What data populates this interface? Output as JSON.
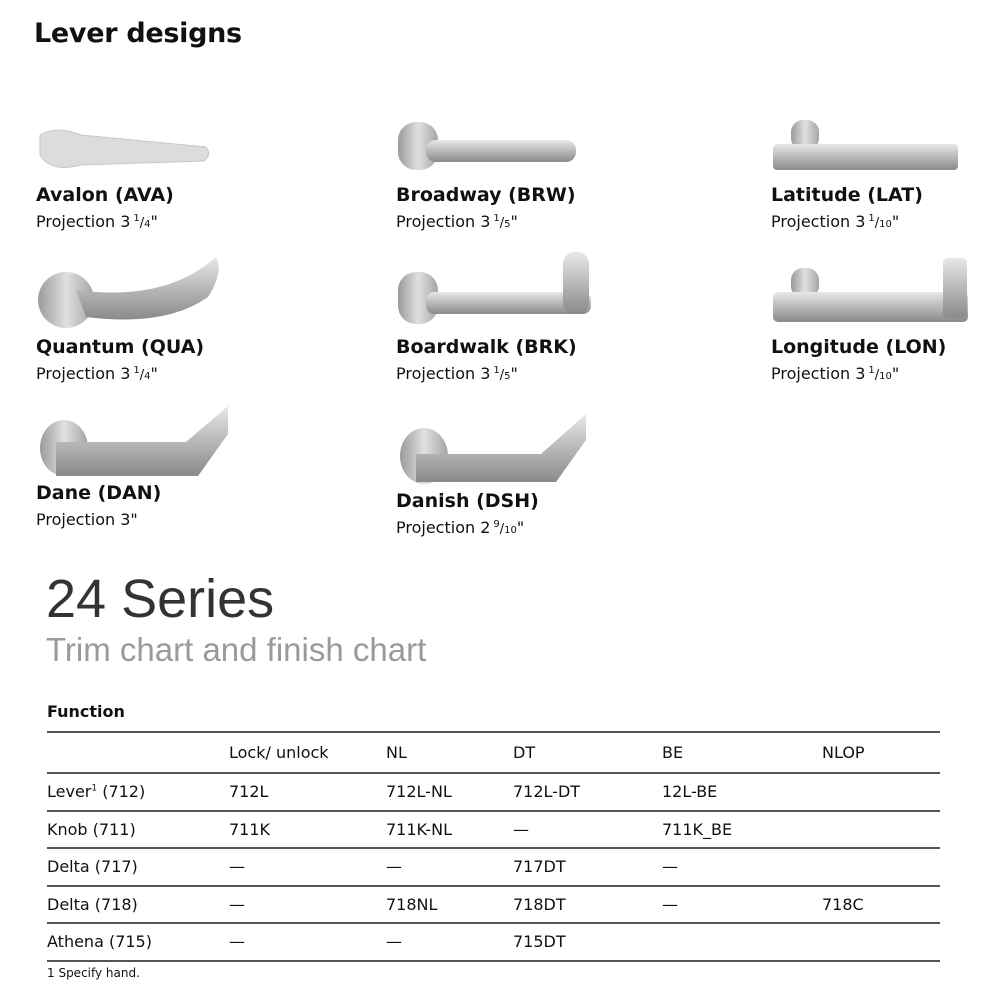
{
  "heading": "Lever designs",
  "levers": [
    {
      "name": "Avalon (AVA)",
      "label": "Projection",
      "whole": "3",
      "num": "1",
      "den": "4"
    },
    {
      "name": "Broadway (BRW)",
      "label": "Projection",
      "whole": "3",
      "num": "1",
      "den": "5"
    },
    {
      "name": "Latitude (LAT)",
      "label": "Projection",
      "whole": "3",
      "num": "1",
      "den": "10"
    },
    {
      "name": "Quantum (QUA)",
      "label": "Projection",
      "whole": "3",
      "num": "1",
      "den": "4"
    },
    {
      "name": "Boardwalk (BRK)",
      "label": "Projection",
      "whole": "3",
      "num": "1",
      "den": "5"
    },
    {
      "name": "Longitude (LON)",
      "label": "Projection",
      "whole": "3",
      "num": "1",
      "den": "10"
    },
    {
      "name": "Dane (DAN)",
      "label": "Projection",
      "whole": "3\"",
      "num": "",
      "den": ""
    },
    {
      "name": "Danish (DSH)",
      "label": "Projection",
      "whole": "2",
      "num": "9",
      "den": "10"
    }
  ],
  "series_title": "24 Series",
  "series_subtitle": "Trim chart and finish chart",
  "table": {
    "caption": "Function",
    "headers": [
      "",
      "Lock/ unlock",
      "NL",
      "DT",
      "BE",
      "NLOP"
    ],
    "rows": [
      {
        "label": "Lever",
        "sup": "1",
        "label_rest": " (712)",
        "cells": [
          "712L",
          "712L-NL",
          "712L-DT",
          "12L-BE",
          ""
        ]
      },
      {
        "label": "Knob (711)",
        "sup": "",
        "label_rest": "",
        "cells": [
          "711K",
          "711K-NL",
          "—",
          "711K_BE",
          ""
        ]
      },
      {
        "label": "Delta (717)",
        "sup": "",
        "label_rest": "",
        "cells": [
          "—",
          "—",
          "717DT",
          "—",
          ""
        ]
      },
      {
        "label": "Delta (718)",
        "sup": "",
        "label_rest": "",
        "cells": [
          "—",
          "718NL",
          "718DT",
          "—",
          "718C"
        ]
      },
      {
        "label": "Athena (715)",
        "sup": "",
        "label_rest": "",
        "cells": [
          "—",
          "—",
          "715DT",
          "",
          ""
        ]
      }
    ]
  },
  "footnote": "1 Specify hand."
}
